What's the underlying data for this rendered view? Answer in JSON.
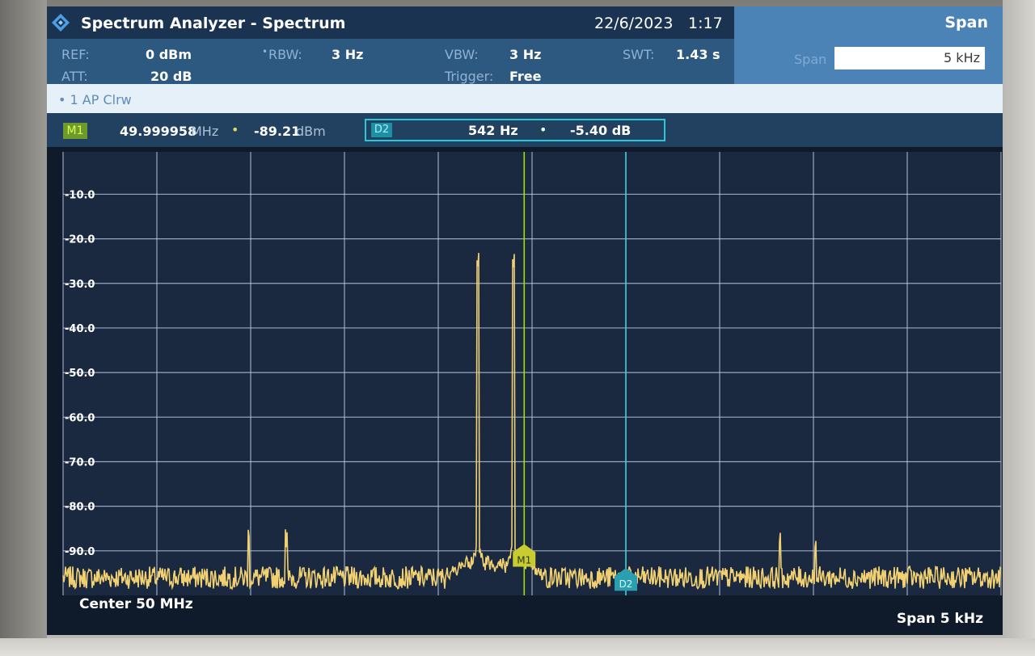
{
  "header": {
    "title": "Spectrum Analyzer - Spectrum",
    "date": "22/6/2023",
    "time": "1:17"
  },
  "params": {
    "ref_label": "REF:",
    "ref_value": "0 dBm",
    "att_label": "ATT:",
    "att_value": "20 dB",
    "rbw_label": "RBW:",
    "rbw_value": "3 Hz",
    "vbw_label": "VBW:",
    "vbw_value": "3 Hz",
    "trigger_label": "Trigger:",
    "trigger_value": "Free",
    "swt_label": "SWT:",
    "swt_value": "1.43 s"
  },
  "softkey": {
    "title": "Span",
    "field_label": "Span",
    "field_value": "5 kHz"
  },
  "trace": {
    "label": "• 1 AP  Clrw"
  },
  "markers": {
    "m1": {
      "badge": "M1",
      "freq": "49.999958",
      "freq_unit": "MHz",
      "level": "-89.21",
      "level_unit": "dBm"
    },
    "d2": {
      "badge": "D2",
      "freq": "542 Hz",
      "level": "-5.40 dB"
    }
  },
  "footer": {
    "center": "Center 50 MHz",
    "span": "Span 5 kHz"
  },
  "colors": {
    "trace": "#f0d070",
    "marker_m1": "#9ee000",
    "marker_d2": "#30d0e0",
    "grid": "#b8c8e0",
    "plot_bg": "#1a2840"
  },
  "chart_data": {
    "type": "line",
    "title": "",
    "xlabel": "",
    "ylabel": "",
    "x_unit": "MHz",
    "xlim": [
      49.9975,
      50.0025
    ],
    "ylim": [
      -100,
      -0.5
    ],
    "y_ticks": [
      -10.0,
      -20.0,
      -30.0,
      -40.0,
      -50.0,
      -60.0,
      -70.0,
      -80.0,
      -90.0
    ],
    "y_tick_labels": [
      "-10.0",
      "-20.0",
      "-30.0",
      "-40.0",
      "-50.0",
      "-60.0",
      "-70.0",
      "-80.0",
      "-90.0"
    ],
    "grid": true,
    "noise_floor_db": -96,
    "series": [
      {
        "name": "1 AP Clrw",
        "peaks": [
          {
            "x": 49.99971,
            "y": -27.0
          },
          {
            "x": 49.9999,
            "y": -27.0
          },
          {
            "x": 49.99849,
            "y": -88.0
          },
          {
            "x": 49.99869,
            "y": -89.5
          },
          {
            "x": 50.00132,
            "y": -89.0
          },
          {
            "x": 50.00151,
            "y": -90.5
          }
        ]
      }
    ],
    "markers": [
      {
        "name": "M1",
        "x": 49.999958,
        "y": -89.21
      },
      {
        "name": "D2",
        "x": 50.0005,
        "y": -94.6
      }
    ]
  }
}
